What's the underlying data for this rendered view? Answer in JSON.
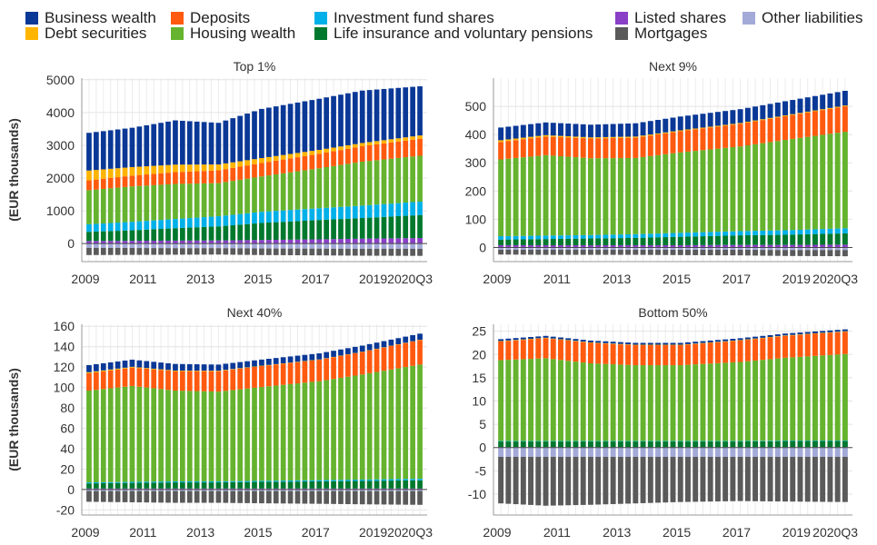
{
  "legend": [
    {
      "key": "business",
      "label": "Business wealth",
      "color": "#0a3896"
    },
    {
      "key": "deposits",
      "label": "Deposits",
      "color": "#ff5a0f"
    },
    {
      "key": "funds",
      "label": "Investment fund shares",
      "color": "#00b0e8"
    },
    {
      "key": "listed",
      "label": "Listed shares",
      "color": "#8a3fc7"
    },
    {
      "key": "other_liab",
      "label": "Other liabilities",
      "color": "#a3aad8"
    },
    {
      "key": "debt",
      "label": "Debt securities",
      "color": "#ffb400"
    },
    {
      "key": "housing",
      "label": "Housing wealth",
      "color": "#65b32e"
    },
    {
      "key": "life",
      "label": "Life insurance and voluntary pensions",
      "color": "#00782d"
    },
    {
      "key": "mortgages",
      "label": "Mortgages",
      "color": "#5a5a5a"
    }
  ],
  "chart_data": [
    {
      "type": "bar",
      "stacked": true,
      "title": "Top 1%",
      "ylabel": "(EUR thousands)",
      "ylim": [
        -550,
        5050
      ],
      "yticks": [
        0,
        1000,
        2000,
        3000,
        4000,
        5000
      ],
      "x_labels": [
        "2009",
        "2011",
        "2013",
        "2015",
        "2017",
        "2019",
        "2020Q3"
      ],
      "n_periods": 47,
      "anchors_t": [
        0,
        6,
        12,
        18,
        24,
        32,
        38,
        46
      ],
      "assets": [
        {
          "key": "listed",
          "values": [
            80,
            85,
            90,
            95,
            110,
            130,
            150,
            170
          ]
        },
        {
          "key": "life",
          "values": [
            280,
            320,
            380,
            430,
            520,
            590,
            630,
            700
          ]
        },
        {
          "key": "funds",
          "values": [
            230,
            260,
            280,
            310,
            340,
            360,
            380,
            410
          ]
        },
        {
          "key": "housing",
          "values": [
            1040,
            1080,
            1070,
            1010,
            1080,
            1220,
            1340,
            1400
          ]
        },
        {
          "key": "deposits",
          "values": [
            300,
            330,
            360,
            390,
            410,
            440,
            470,
            520
          ]
        },
        {
          "key": "debt",
          "values": [
            300,
            260,
            230,
            180,
            150,
            120,
            100,
            100
          ]
        },
        {
          "key": "business",
          "values": [
            1150,
            1200,
            1350,
            1270,
            1500,
            1560,
            1600,
            1500
          ]
        }
      ],
      "liabilities": [
        {
          "key": "other_liab",
          "values": [
            -130,
            -135,
            -140,
            -140,
            -150,
            -155,
            -160,
            -160
          ]
        },
        {
          "key": "mortgages",
          "values": [
            -220,
            -210,
            -200,
            -195,
            -200,
            -205,
            -210,
            -215
          ]
        }
      ]
    },
    {
      "type": "bar",
      "stacked": true,
      "title": "Next 9%",
      "ylabel": "",
      "ylim": [
        -50,
        600
      ],
      "yticks": [
        0,
        100,
        200,
        300,
        400,
        500
      ],
      "x_labels": [
        "2009",
        "2011",
        "2013",
        "2015",
        "2017",
        "2019",
        "2020Q3"
      ],
      "n_periods": 47,
      "anchors_t": [
        0,
        6,
        12,
        18,
        24,
        32,
        38,
        46
      ],
      "assets": [
        {
          "key": "listed",
          "values": [
            8,
            8,
            8,
            8,
            8,
            9,
            9,
            10
          ]
        },
        {
          "key": "life",
          "values": [
            20,
            22,
            24,
            26,
            30,
            34,
            36,
            40
          ]
        },
        {
          "key": "funds",
          "values": [
            12,
            12,
            12,
            13,
            14,
            15,
            16,
            18
          ]
        },
        {
          "key": "housing",
          "values": [
            272,
            285,
            272,
            270,
            285,
            300,
            320,
            342
          ]
        },
        {
          "key": "deposits",
          "values": [
            62,
            66,
            70,
            72,
            75,
            80,
            84,
            90
          ]
        },
        {
          "key": "debt",
          "values": [
            6,
            5,
            4,
            4,
            3,
            3,
            3,
            3
          ]
        },
        {
          "key": "business",
          "values": [
            45,
            45,
            45,
            47,
            49,
            49,
            50,
            52
          ]
        }
      ],
      "liabilities": [
        {
          "key": "other_liab",
          "values": [
            -8,
            -8,
            -8,
            -8,
            -8,
            -8,
            -9,
            -9
          ]
        },
        {
          "key": "mortgages",
          "values": [
            -17,
            -18,
            -18,
            -18,
            -19,
            -20,
            -21,
            -22
          ]
        }
      ]
    },
    {
      "type": "bar",
      "stacked": true,
      "title": "Next 40%",
      "ylabel": "(EUR thousands)",
      "ylim": [
        -25,
        162
      ],
      "yticks": [
        -20,
        0,
        20,
        40,
        60,
        80,
        100,
        120,
        140,
        160
      ],
      "x_labels": [
        "2009",
        "2011",
        "2013",
        "2015",
        "2017",
        "2019",
        "2020Q3"
      ],
      "n_periods": 47,
      "anchors_t": [
        0,
        6,
        12,
        18,
        24,
        32,
        38,
        46
      ],
      "assets": [
        {
          "key": "listed",
          "values": [
            1,
            1,
            1,
            1,
            1,
            1,
            1,
            1
          ]
        },
        {
          "key": "life",
          "values": [
            5,
            5.5,
            6,
            6,
            6.5,
            7,
            7.5,
            8
          ]
        },
        {
          "key": "funds",
          "values": [
            1,
            1,
            1,
            1,
            1,
            1.2,
            1.3,
            1.5
          ]
        },
        {
          "key": "housing",
          "values": [
            90,
            94,
            89,
            88,
            92,
            97,
            103,
            112
          ]
        },
        {
          "key": "deposits",
          "values": [
            17,
            18,
            19,
            20,
            20.5,
            21,
            22,
            24
          ]
        },
        {
          "key": "debt",
          "values": [
            1,
            0.8,
            0.6,
            0.5,
            0.4,
            0.3,
            0.3,
            0.3
          ]
        },
        {
          "key": "business",
          "values": [
            7,
            7,
            6.5,
            6,
            6,
            6,
            6,
            6
          ]
        }
      ],
      "liabilities": [
        {
          "key": "other_liab",
          "values": [
            -1.5,
            -1.5,
            -1.5,
            -1.5,
            -1.5,
            -1.5,
            -1.5,
            -1.5
          ]
        },
        {
          "key": "mortgages",
          "values": [
            -10.5,
            -11,
            -11.5,
            -11.5,
            -12,
            -12.5,
            -13,
            -13.5
          ]
        }
      ]
    },
    {
      "type": "bar",
      "stacked": true,
      "title": "Bottom 50%",
      "ylabel": "",
      "ylim": [
        -14.5,
        26.5
      ],
      "yticks": [
        -10,
        -5,
        0,
        5,
        10,
        15,
        20,
        25
      ],
      "x_labels": [
        "2009",
        "2011",
        "2013",
        "2015",
        "2017",
        "2019",
        "2020Q3"
      ],
      "n_periods": 47,
      "anchors_t": [
        0,
        6,
        12,
        18,
        24,
        32,
        38,
        46
      ],
      "assets": [
        {
          "key": "listed",
          "values": [
            0.1,
            0.1,
            0.1,
            0.1,
            0.1,
            0.1,
            0.1,
            0.1
          ]
        },
        {
          "key": "life",
          "values": [
            1.2,
            1.2,
            1.2,
            1.2,
            1.2,
            1.2,
            1.3,
            1.3
          ]
        },
        {
          "key": "funds",
          "values": [
            0.1,
            0.1,
            0.1,
            0.1,
            0.1,
            0.1,
            0.1,
            0.1
          ]
        },
        {
          "key": "housing",
          "values": [
            17.4,
            17.8,
            16.7,
            16.3,
            16.3,
            17,
            17.8,
            18.6
          ]
        },
        {
          "key": "deposits",
          "values": [
            4,
            4.3,
            4.4,
            4.3,
            4.3,
            4.6,
            4.7,
            4.8
          ]
        },
        {
          "key": "debt",
          "values": [
            0.1,
            0.1,
            0.1,
            0.1,
            0.1,
            0.1,
            0.1,
            0.1
          ]
        },
        {
          "key": "business",
          "values": [
            0.4,
            0.4,
            0.4,
            0.4,
            0.4,
            0.4,
            0.4,
            0.4
          ]
        }
      ],
      "liabilities": [
        {
          "key": "other_liab",
          "values": [
            -2,
            -2,
            -2,
            -2,
            -2,
            -2,
            -2,
            -2
          ]
        },
        {
          "key": "mortgages",
          "values": [
            -10,
            -10.5,
            -10.3,
            -10,
            -9.7,
            -9.5,
            -9.6,
            -9.7
          ]
        }
      ]
    }
  ]
}
